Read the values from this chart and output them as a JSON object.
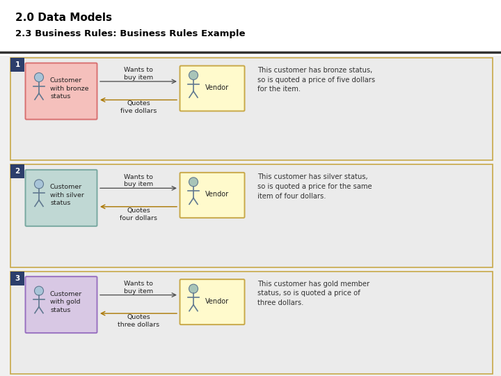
{
  "title_line1": "2.0 Data Models",
  "title_line2": "2.3 Business Rules: Business Rules Example",
  "title_fontsize": 11,
  "subtitle_fontsize": 9.5,
  "bg_color": "#f0f0f0",
  "header_bg": "#ffffff",
  "separator_color": "#333333",
  "row_border_color": "#c8a848",
  "row_bg_color": "#ebebeb",
  "number_bg_color": "#2c3e6b",
  "number_text_color": "#ffffff",
  "rows": [
    {
      "number": "1",
      "customer_label": "Customer\nwith bronze\nstatus",
      "customer_box_fill": "#f5c0bc",
      "customer_box_edge": "#d87070",
      "vendor_box_fill": "#fffacc",
      "vendor_box_edge": "#c8a848",
      "arrow_forward_label": "Wants to\nbuy item",
      "arrow_back_label": "Quotes\nfive dollars",
      "description": "This customer has bronze status,\nso is quoted a price of five dollars\nfor the item."
    },
    {
      "number": "2",
      "customer_label": "Customer\nwith silver\nstatus",
      "customer_box_fill": "#c0d8d4",
      "customer_box_edge": "#78a8a0",
      "vendor_box_fill": "#fffacc",
      "vendor_box_edge": "#c8a848",
      "arrow_forward_label": "Wants to\nbuy item",
      "arrow_back_label": "Quotes\nfour dollars",
      "description": "This customer has silver status,\nso is quoted a price for the same\nitem of four dollars."
    },
    {
      "number": "3",
      "customer_label": "Customer\nwith gold\nstatus",
      "customer_box_fill": "#d8c8e4",
      "customer_box_edge": "#9870c0",
      "vendor_box_fill": "#fffacc",
      "vendor_box_edge": "#c8a848",
      "arrow_forward_label": "Wants to\nbuy item",
      "arrow_back_label": "Quotes\nthree dollars",
      "description": "This customer has gold member\nstatus, so is quoted a price of\nthree dollars."
    }
  ]
}
